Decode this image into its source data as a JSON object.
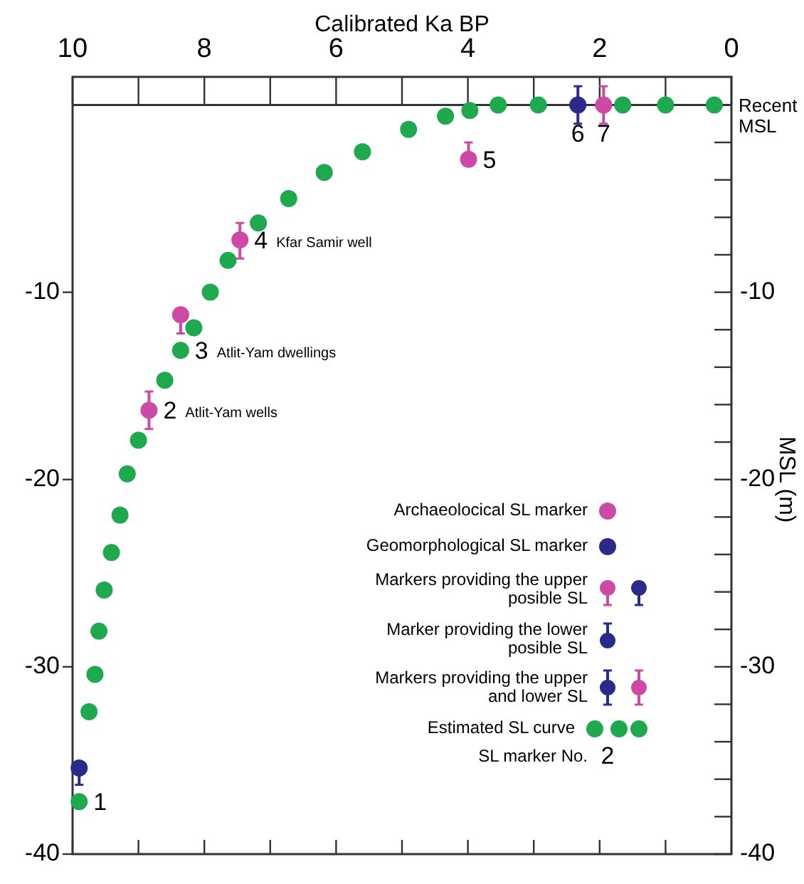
{
  "chart_data": {
    "type": "scatter",
    "xlabel": "Calibrated Ka BP",
    "y2label": "MSL (m)",
    "xlim": [
      10,
      0
    ],
    "xticks": [
      10,
      {
        "value": 9,
        "label": null
      },
      8,
      {
        "value": 7,
        "label": null
      },
      6,
      {
        "value": 5,
        "label": null
      },
      4,
      {
        "value": 3,
        "label": null
      },
      2,
      {
        "value": 1,
        "label": null
      },
      0
    ],
    "ylim": [
      -40,
      1.5
    ],
    "yticks": [
      -10,
      -20,
      -30,
      -40
    ],
    "y2lim": [
      -40,
      1.5
    ],
    "y2ticks": [
      {
        "value": -2,
        "label": null
      },
      {
        "value": -4,
        "label": null
      },
      {
        "value": -6,
        "label": null
      },
      {
        "value": -8,
        "label": null
      },
      -10,
      {
        "value": -12,
        "label": null
      },
      {
        "value": -14,
        "label": null
      },
      {
        "value": -16,
        "label": null
      },
      {
        "value": -18,
        "label": null
      },
      -20,
      {
        "value": -22,
        "label": null
      },
      {
        "value": -24,
        "label": null
      },
      {
        "value": -26,
        "label": null
      },
      {
        "value": -28,
        "label": null
      },
      -30,
      {
        "value": -32,
        "label": null
      },
      {
        "value": -34,
        "label": null
      },
      {
        "value": -36,
        "label": null
      },
      {
        "value": -38,
        "label": null
      },
      -40
    ],
    "marker": "circle",
    "legend": "right",
    "series": [
      {
        "name": "Archaeolocical SL marker",
        "color": "#cc4aa5",
        "x": [
          8.84,
          8.36,
          7.46,
          3.99,
          1.94
        ],
        "values": [
          -16.3,
          -11.2,
          -7.2,
          -2.9,
          0
        ],
        "errors": [
          [
            -17.3,
            -15.3
          ],
          [
            -12.2,
            -11.2
          ],
          [
            -8.2,
            -6.3
          ],
          [
            -2.9,
            -2.0
          ],
          [
            -1.0,
            1.0
          ]
        ]
      },
      {
        "name": "Geomorphological SL marker",
        "color": "#2b2a8a",
        "x": [
          9.9,
          2.33
        ],
        "values": [
          -35.4,
          0
        ],
        "errors": [
          [
            -36.3,
            -35.4
          ],
          [
            -1.0,
            1.0
          ]
        ]
      },
      {
        "name": "Estimated SL curve",
        "color": "#1ea94e",
        "x": [
          9.9,
          9.75,
          9.66,
          9.6,
          9.52,
          9.41,
          9.28,
          9.17,
          9.0,
          8.6,
          8.36,
          8.16,
          7.91,
          7.64,
          7.18,
          6.72,
          6.18,
          5.6,
          4.9,
          4.34,
          3.97,
          3.54,
          2.93,
          1.65,
          1.0,
          0.26
        ],
        "values": [
          -37.2,
          -32.4,
          -30.4,
          -28.1,
          -25.9,
          -23.9,
          -21.9,
          -19.7,
          -17.9,
          -14.7,
          -13.1,
          -11.9,
          -10.0,
          -8.3,
          -6.3,
          -5.0,
          -3.6,
          -2.5,
          -1.3,
          -0.6,
          -0.3,
          0,
          0,
          0,
          0,
          0
        ]
      }
    ],
    "ref_lines": [
      {
        "axis": "y",
        "value": 0,
        "label": "Recent\nMSL"
      }
    ],
    "annotations": [
      "Markers providing the upper\nposible SL",
      "Marker providing the lower\nposible SL",
      "Markers providing the upper\nand lower SL",
      "SL marker No.",
      "2",
      {
        "text": "1",
        "x": 9.9,
        "y": -37.2
      },
      {
        "text": "2",
        "x": 8.84,
        "y": -16.3
      },
      {
        "text": "Atlit-Yam wells",
        "x": 8.84,
        "y": -16.3
      },
      {
        "text": "3",
        "x": 8.36,
        "y": -13.1
      },
      {
        "text": "Atlit-Yam dwellings",
        "x": 8.36,
        "y": -13.1
      },
      {
        "text": "4",
        "x": 7.46,
        "y": -7.2
      },
      {
        "text": "Kfar Samir well",
        "x": 7.46,
        "y": -7.2
      },
      {
        "text": "5",
        "x": 3.99,
        "y": -2.9
      },
      {
        "text": "6",
        "x": 2.33,
        "y": 0
      },
      {
        "text": "7",
        "x": 1.94,
        "y": 0
      }
    ]
  }
}
